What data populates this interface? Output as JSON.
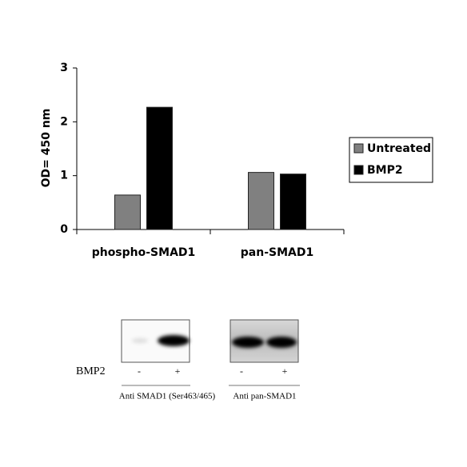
{
  "chart_data": {
    "type": "bar",
    "y_label": "OD= 450 nm",
    "categories": [
      "phospho-SMAD1",
      "pan-SMAD1"
    ],
    "series": [
      {
        "name": "Untreated",
        "color": "#808080",
        "values": [
          0.64,
          1.06
        ]
      },
      {
        "name": "BMP2",
        "color": "#000000",
        "values": [
          2.27,
          1.03
        ]
      }
    ],
    "ylim": [
      0,
      3
    ],
    "yticks": [
      0,
      1,
      2,
      3
    ],
    "grid": false,
    "legend": "right"
  },
  "blot": {
    "treatment": "BMP2",
    "panels": [
      {
        "lanes": [
          "-",
          "+"
        ],
        "antibody": "Anti SMAD1 (Ser463/465)"
      },
      {
        "lanes": [
          "-",
          "+"
        ],
        "antibody": "Anti pan-SMAD1"
      }
    ]
  }
}
